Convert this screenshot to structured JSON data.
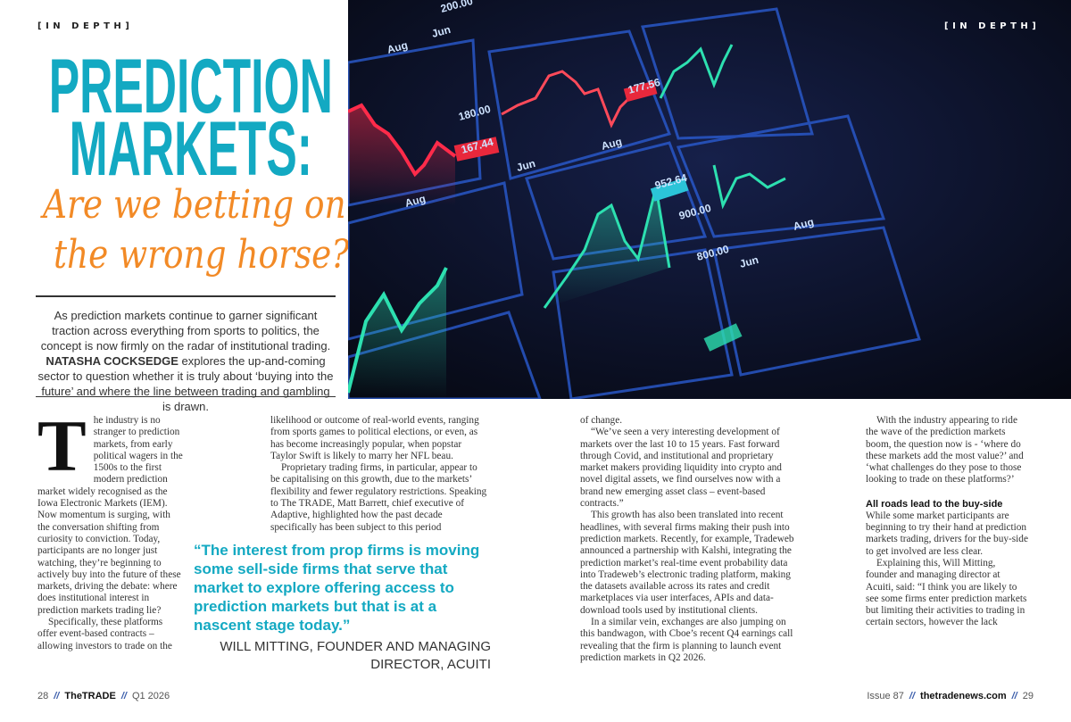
{
  "kicker_left": "[IN DEPTH]",
  "kicker_right": "[IN DEPTH]",
  "title": {
    "line1": "PREDICTION",
    "line2": "MARKETS:",
    "sub1": "Are we betting on",
    "sub2": "the wrong horse?"
  },
  "intro": {
    "before": "As prediction markets continue to garner significant traction across everything from sports to politics, the concept is now firmly on the radar of institutional trading. ",
    "author": "NATASHA COCKSEDGE",
    "after": " explores the up-and-coming sector to question whether it is truly about ‘buying into the future’ and where the line between trading and gambling is drawn."
  },
  "photo_labels": [
    "200.00",
    "Jun",
    "Aug",
    "180.00",
    "167.44",
    "177.56",
    "Jun",
    "Aug",
    "Aug",
    "952.64",
    "900.00",
    "800.00",
    "Jun",
    "Aug"
  ],
  "colors": {
    "teal": "#13a9c2",
    "orange": "#f28a26",
    "up": "#2de0b0",
    "down": "#ff2b4a"
  },
  "body": {
    "drop_cap": "T",
    "c1p1": "he industry is no stranger to prediction markets, from early political wagers in the 1500s to the first modern prediction market widely recognised as the Iowa Electronic Markets (IEM). Now momentum is surging, with the conversation shifting from curiosity to conviction. Today, participants are no longer just watching, they’re beginning to actively buy into the future of these markets, driving the debate: where does institutional interest in prediction markets trading lie?",
    "c1p2": "Specifically, these platforms offer event-based contracts – allowing investors to trade on the",
    "c2p1": "likelihood or outcome of real-world events, ranging from sports games to political elections, or even, as has become increasingly popular, when popstar Taylor Swift is likely to marry her NFL beau.",
    "c2p2": "Proprietary trading firms, in particular, appear to be capitalising on this growth, due to the markets’ flexibility and fewer regulatory restrictions. Speaking to The TRADE, Matt Barrett, chief executive of Adaptive, highlighted how the past decade specifically has been subject to this period",
    "c3p1": "of change.",
    "c3p2": "“We’ve seen a very interesting development of markets over the last 10 to 15 years. Fast forward through Covid, and institutional and proprietary market makers providing liquidity into crypto and novel digital assets, we find ourselves now with a brand new emerging asset class – event-based contracts.”",
    "c3p3": "This growth has also been translated into recent headlines, with several firms making their push into prediction markets. Recently, for example, Tradeweb announced a partnership with Kalshi, integrating the prediction market’s real-time event probability data into Tradeweb’s electronic trading platform, making the datasets available across its rates and credit marketplaces via user interfaces, APIs and data-download tools used by institutional clients.",
    "c3p4": "In a similar vein, exchanges are also jumping on this bandwagon, with Cboe’s recent Q4 earnings call revealing that the firm is planning to launch event prediction markets in Q2 2026.",
    "c4p1": "With the industry appearing to ride the wave of the prediction markets boom, the question now is - ‘where do these markets add the most value?’ and ‘what challenges do they pose to those looking to trade on these platforms?’",
    "c4head": "All roads lead to the buy-side",
    "c4p2": "While some market participants are beginning to try their hand at prediction markets trading, drivers for the buy-side to get involved are less clear.",
    "c4p3": "Explaining this, Will Mitting, founder and managing director at  Acuiti, said: “I think you are likely to see some firms enter prediction markets but limiting their activities to trading in certain sectors, however the lack"
  },
  "pullquote": {
    "text": "“The interest from prop firms is moving some sell-side firms that serve that market to explore offering access to prediction markets but that is at a nascent stage today.”",
    "attribution": "WILL MITTING, FOUNDER AND MANAGING DIRECTOR, ACUITI"
  },
  "footer_left": {
    "page": "28",
    "sep": "//",
    "brand": "TheTRADE",
    "issue": "Q1 2026"
  },
  "footer_right": {
    "issue": "Issue 87",
    "sep": "//",
    "site": "thetradenews.com",
    "page": "29"
  }
}
